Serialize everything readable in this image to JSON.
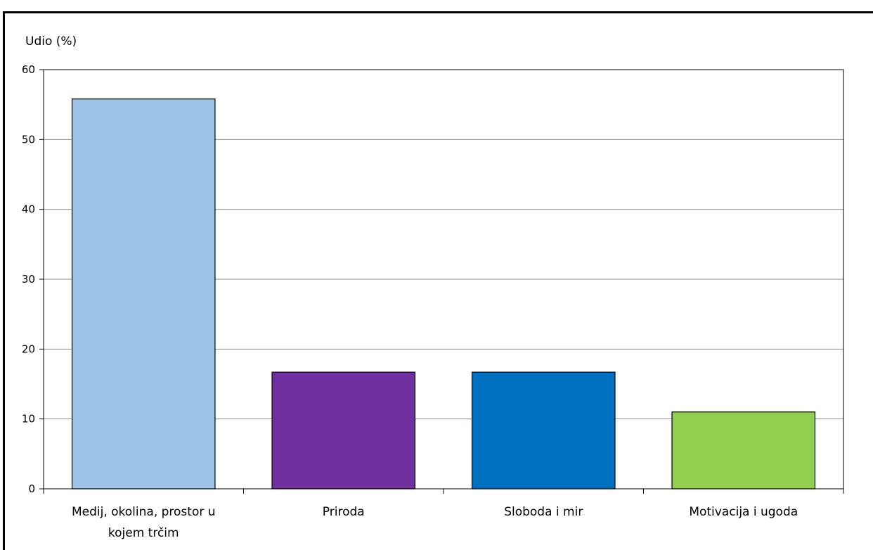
{
  "chart_data": {
    "type": "bar",
    "ylabel": "Udio (%)",
    "xlabel": "",
    "ylim": [
      0,
      60
    ],
    "yticks": [
      0,
      10,
      20,
      30,
      40,
      50,
      60
    ],
    "grid": true,
    "legend": "none",
    "categories": [
      [
        "Medij, okolina, prostor u",
        "kojem trčim"
      ],
      [
        "Priroda"
      ],
      [
        "Sloboda i mir"
      ],
      [
        "Motivacija i ugoda"
      ]
    ],
    "values": [
      55.8,
      16.7,
      16.7,
      11.0
    ],
    "colors": [
      "#9dc3e6",
      "#7030a0",
      "#0070c0",
      "#92d050"
    ]
  }
}
